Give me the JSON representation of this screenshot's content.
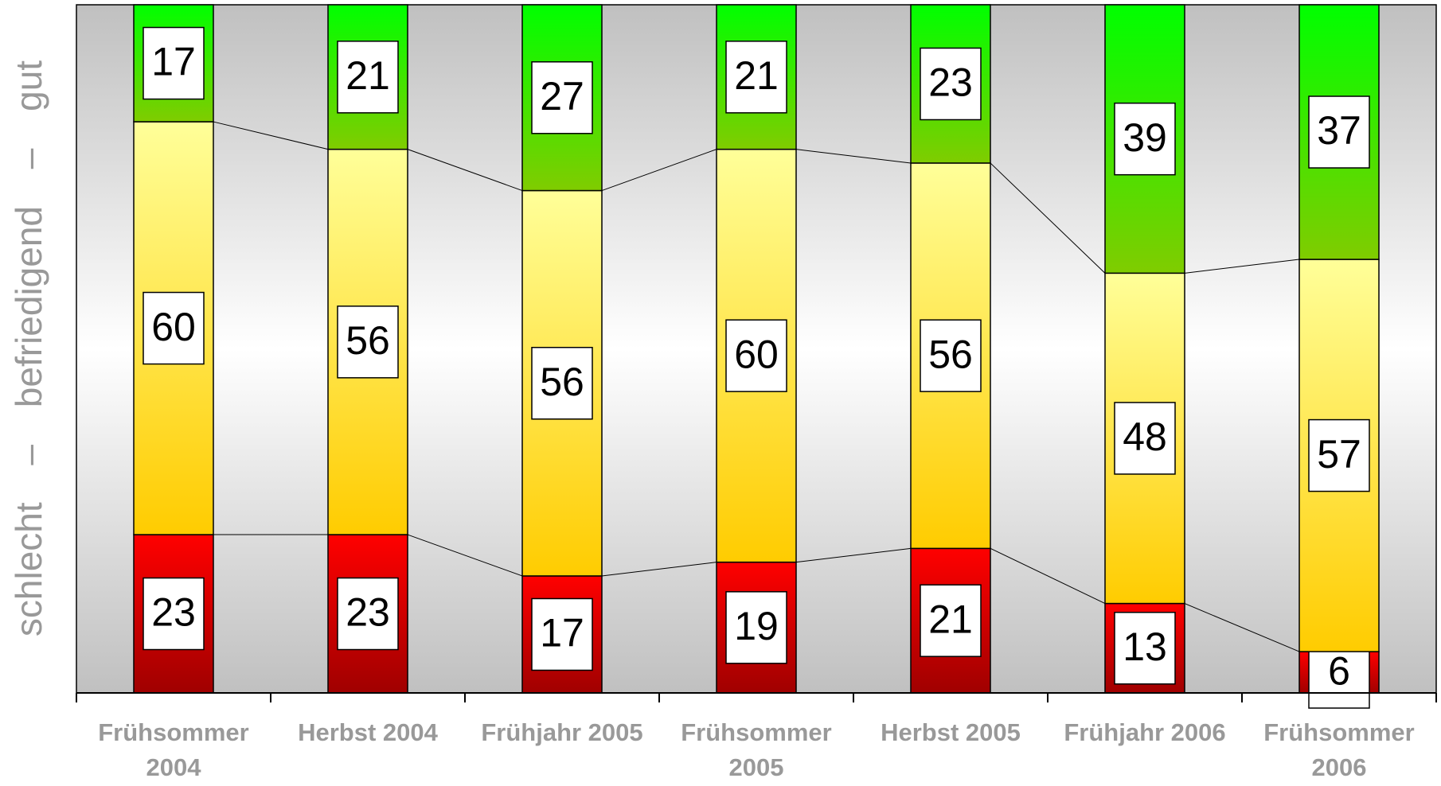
{
  "chart_data": {
    "type": "stacked_bar",
    "y_label": "schlecht – befriedigend – gut",
    "categories": [
      "Frühsommer 2004",
      "Herbst 2004",
      "Frühjahr 2005",
      "Frühsommer 2005",
      "Herbst 2005",
      "Frühjahr 2006",
      "Frühsommer 2006"
    ],
    "series": [
      {
        "color": [
          "#ff0000",
          "#a00000"
        ],
        "values": [
          23,
          23,
          17,
          19,
          21,
          13,
          6
        ]
      },
      {
        "color": [
          "#ffff99",
          "#ffcc00"
        ],
        "values": [
          60,
          56,
          56,
          60,
          56,
          48,
          57
        ]
      },
      {
        "color": [
          "#00ff00",
          "#80cc00"
        ],
        "values": [
          17,
          21,
          27,
          21,
          23,
          39,
          37
        ]
      }
    ],
    "ylim": [
      0,
      100
    ],
    "background": [
      "#c0c0c0",
      "#ffffff"
    ]
  }
}
